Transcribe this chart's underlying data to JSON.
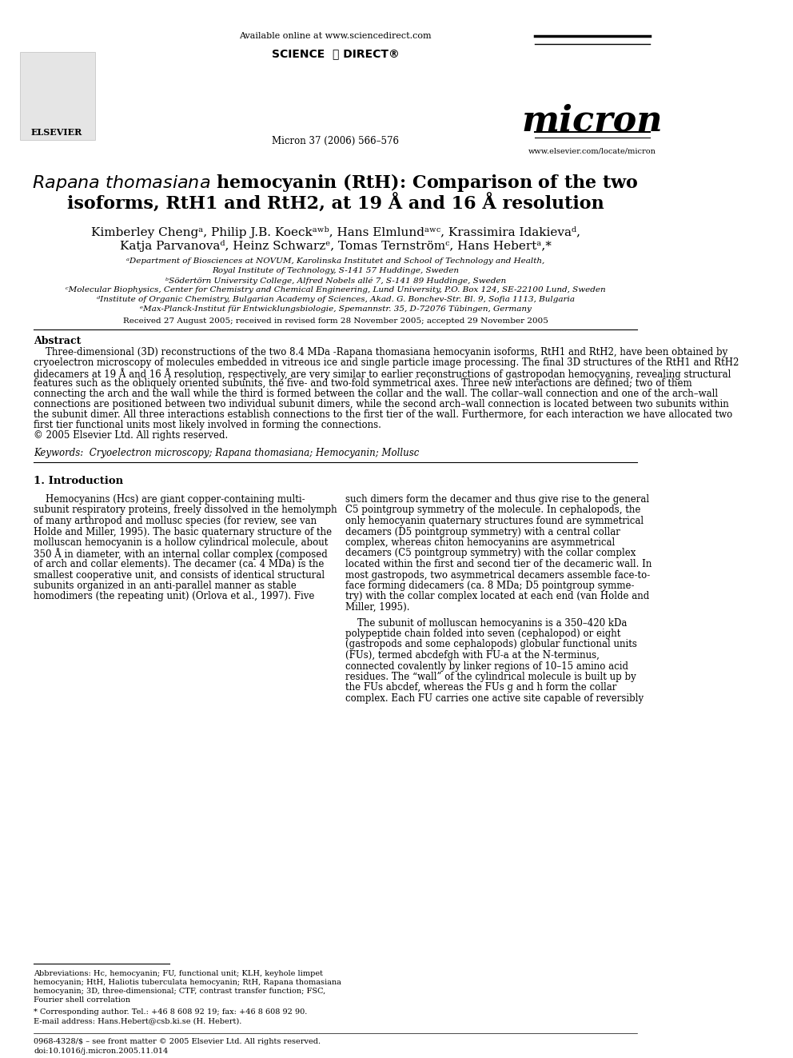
{
  "bg_color": "#ffffff",
  "header": {
    "available_online": "Available online at www.sciencedirect.com",
    "sciencedirect": "SCIENCE DIRECT®",
    "journal_ref": "Micron 37 (2006) 566–576",
    "journal_name": "micron",
    "website": "www.elsevier.com/locate/micron",
    "elsevier_text": "ELSEVIER"
  },
  "title_line1": "Rapana thomasiana hemocyanin (RtH): Comparison of the two",
  "title_line2": "isoforms, RtH1 and RtH2, at 19 Å and 16 Å resolution",
  "authors": "Kimberley Chengᵃ, Philip J.B. Koeckᵃʷᵇ, Hans Elmlundᵃʷᶜ, Krassimira Idakievaᵈ,",
  "authors2": "Katja Parvanovaᵈ, Heinz Schwarzᵉ, Tomas Ternströmᶜ, Hans Hebertᵃ,*",
  "affil1": "ᵃDepartment of Biosciences at NOVUM, Karolinska Institutet and School of Technology and Health,",
  "affil1b": "Royal Institute of Technology, S-141 57 Huddinge, Sweden",
  "affil2": "ᵇSödertörn University College, Alfred Nobels allé 7, S-141 89 Huddinge, Sweden",
  "affil3": "ᶜMolecular Biophysics, Center for Chemistry and Chemical Engineering, Lund University, P.O. Box 124, SE-22100 Lund, Sweden",
  "affil4": "ᵈInstitute of Organic Chemistry, Bulgarian Academy of Sciences, Akad. G. Bonchev-Str. Bl. 9, Sofia 1113, Bulgaria",
  "affil5": "ᵉMax-Planck-Institut für Entwicklungsbiologie, Spemannstr. 35, D-72076 Tübingen, Germany",
  "received": "Received 27 August 2005; received in revised form 28 November 2005; accepted 29 November 2005",
  "abstract_title": "Abstract",
  "abstract_text": "Three-dimensional (3D) reconstructions of the two 8.4 MDa Rapana thomasiana hemocyanin isoforms, RtH1 and RtH2, have been obtained by\ncryoelectron microscopy of molecules embedded in vitreous ice and single particle image processing. The final 3D structures of the RtH1 and RtH2\ndidecamers at 19 Å and 16 Å resolution, respectively, are very similar to earlier reconstructions of gastropodan hemocyanins, revealing structural\nfeatures such as the obliquely oriented subunits, the five- and two-fold symmetrical axes. Three new interactions are defined; two of them\nconnecting the arch and the wall while the third is formed between the collar and the wall. The collar–wall connection and one of the arch–wall\nconnections are positioned between two individual subunit dimers, while the second arch–wall connection is located between two subunits within\nthe subunit dimer. All three interactions establish connections to the first tier of the wall. Furthermore, for each interaction we have allocated two\nfirst tier functional units most likely involved in forming the connections.\n© 2005 Elsevier Ltd. All rights reserved.",
  "keywords": "Keywords:  Cryoelectron microscopy; Rapana thomasiana; Hemocyanin; Mollusc",
  "section1_title": "1. Introduction",
  "intro_col1_p1": "Hemocyanins (Hcs) are giant copper-containing multi-\nsubunit respiratory proteins, freely dissolved in the hemolymph\nof many arthropod and mollusc species (for review, see van\nHolde and Miller, 1995). The basic quaternary structure of the\nmolluscan hemocyanin is a hollow cylindrical molecule, about\n350 Å in diameter, with an internal collar complex (composed\nof arch and collar elements). The decamer (ca. 4 MDa) is the\nsmallest cooperative unit, and consists of identical structural\nsubunits organized in an anti-parallel manner as stable\nhomodimers (the repeating unit) (Orlova et al., 1997). Five",
  "intro_col2_p1": "such dimers form the decamer and thus give rise to the general\nC5 pointgroup symmetry of the molecule. In cephalopods, the\nonly hemocyanin quaternary structures found are symmetrical\ndecamers (D5 pointgroup symmetry) with a central collar\ncomplex, whereas chiton hemocyanins are asymmetrical\ndecamers (C5 pointgroup symmetry) with the collar complex\nlocated within the first and second tier of the decameric wall. In\nmost gastropods, two asymmetrical decamers assemble face-to-\nface forming didecamers (ca. 8 MDa; D5 pointgroup symme-\ntry) with the collar complex located at each end (van Holde and\nMiller, 1995).",
  "intro_col2_p2": "The subunit of molluscan hemocyanins is a 350–420 kDa\npolypeptide chain folded into seven (cephalopod) or eight\n(gastropods and some cephalopods) globular functional units\n(FUs), termed abcdefgh with FU-a at the N-terminus,\nconnected covalently by linker regions of 10–15 amino acid\nresidues. The “wall” of the cylindrical molecule is built up by\nthe FUs abcdef, whereas the FUs g and h form the collar\ncomplex. Each FU carries one active site capable of reversibly",
  "footnote_abbrev": "Abbreviations: Hc, hemocyanin; FU, functional unit; KLH, keyhole limpet\nhemocyanin; HtH, Haliotis tuberculata hemocyanin; RtH, Rapana thomasiana\nhemocyanin; 3D, three-dimensional; CTF, contrast transfer function; FSC,\nFourier shell correlation",
  "footnote_star": "* Corresponding author. Tel.: +46 8 608 92 19; fax: +46 8 608 92 90.",
  "footnote_email": "E-mail address: Hans.Hebert@csb.ki.se (H. Hebert).",
  "footer1": "0968-4328/$ – see front matter © 2005 Elsevier Ltd. All rights reserved.",
  "footer2": "doi:10.1016/j.micron.2005.11.014"
}
